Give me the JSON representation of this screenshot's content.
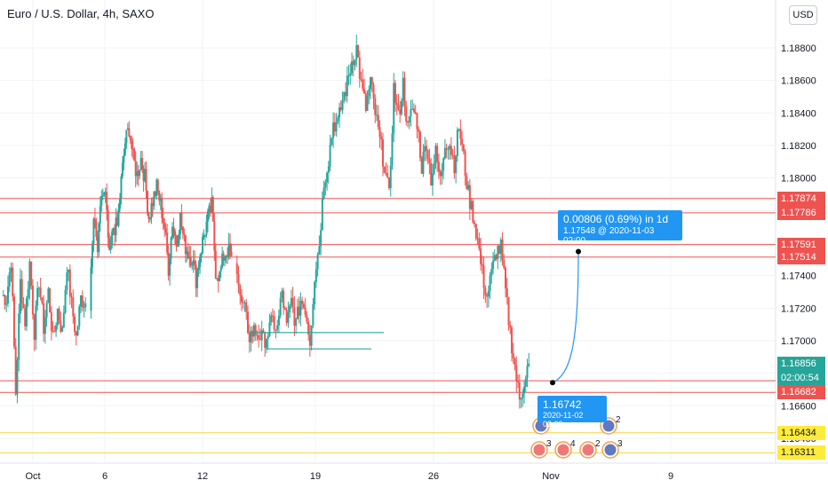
{
  "header": {
    "title": "Euro / U.S. Dollar, 4h, SAXO",
    "currency_button": "USD"
  },
  "chart_data": {
    "type": "candlestick",
    "title": "Euro / U.S. Dollar, 4h, SAXO",
    "ylim": [
      1.163,
      1.1895
    ],
    "y_ticks": [
      "1.18800",
      "1.18600",
      "1.18400",
      "1.18200",
      "1.18000",
      "1.17800",
      "1.17600",
      "1.17400",
      "1.17200",
      "1.17000",
      "1.16800",
      "1.16600",
      "1.16400"
    ],
    "x_ticks": [
      "Oct",
      "6",
      "12",
      "19",
      "26",
      "Nov",
      "9"
    ],
    "colors": {
      "up": "#26a69a",
      "down": "#ef5350",
      "horizontal_line": "#ef5350",
      "support_line": "#f5d442",
      "trend_line": "#26a69a",
      "projection": "#2196f3"
    },
    "candle_segments": [
      [
        1.1728,
        1.1726,
        1.175,
        1.1668,
        1.1736,
        1.1712,
        1.1748,
        1.1706,
        1.1737,
        1.1708,
        1.173,
        1.17,
        1.1719,
        1.1705,
        1.1747,
        1.1722,
        1.1702,
        1.1726,
        1.1723
      ],
      [
        1.1723,
        1.1775,
        1.1755,
        1.179,
        1.1788,
        1.175,
        1.177,
        1.177,
        1.1798,
        1.1822,
        1.1831,
        1.1812,
        1.1802,
        1.1812,
        1.18,
        1.1776,
        1.1786,
        1.1794,
        1.1784,
        1.177,
        1.1745,
        1.1773,
        1.176,
        1.1776,
        1.176,
        1.1754,
        1.1751,
        1.1738,
        1.1753,
        1.1765,
        1.1775,
        1.1783,
        1.1743,
        1.174,
        1.1752,
        1.1756,
        1.1752
      ],
      [
        1.1752,
        1.1725,
        1.1718,
        1.1703,
        1.1706,
        1.1704,
        1.17,
        1.1705,
        1.1712,
        1.1707,
        1.173,
        1.1708,
        1.1724,
        1.171,
        1.1725,
        1.172,
        1.17,
        1.174,
        1.176,
        1.1798,
        1.1812,
        1.1834,
        1.1833,
        1.1848,
        1.1858,
        1.1872,
        1.188,
        1.1857,
        1.1843,
        1.1859,
        1.184,
        1.1823,
        1.1808,
        1.1788,
        1.1855,
        1.1837,
        1.1858,
        1.183,
        1.1843,
        1.1835,
        1.1807,
        1.1823,
        1.18,
        1.1815,
        1.1798,
        1.1823,
        1.1821,
        1.1809,
        1.1832,
        1.1812,
        1.179,
        1.1778,
        1.1762,
        1.1741,
        1.1727,
        1.1741,
        1.1755,
        1.1757,
        1.173,
        1.1705,
        1.1684,
        1.1663,
        1.1676,
        1.1686
      ]
    ],
    "horizontal_lines": [
      {
        "price": 1.17874,
        "label": "1.17874"
      },
      {
        "price": 1.17786,
        "label": "1.17786"
      },
      {
        "price": 1.17591,
        "label": "1.17591"
      },
      {
        "price": 1.17514,
        "label": "1.17514"
      },
      {
        "price": 1.16754,
        "label": "1.16754"
      },
      {
        "price": 1.16682,
        "label": "1.16682"
      }
    ],
    "support_lines": [
      {
        "price": 1.16434,
        "label": "1.16434"
      },
      {
        "price": 1.16311,
        "label": "1.16311"
      }
    ],
    "current_price": {
      "label": "1.16856",
      "countdown": "02:00:54",
      "price": 1.16856
    },
    "trend_lines": [
      {
        "from_date": "Oct 15",
        "to_date": "Oct 22",
        "price": 1.1705
      },
      {
        "from_date": "Oct 16",
        "to_date": "Oct 22",
        "price": 1.1695
      }
    ],
    "projection": {
      "start_price": 1.16742,
      "start_time": "2020-11-02 02:00",
      "end_price": 1.17548,
      "end_time": "2020-11-03 02:00",
      "change_text": "0.00806 (0.69%) in 1d"
    }
  },
  "projection_box": {
    "line1": "0.00806 (0.69%) in 1d",
    "line2": "1.17548 @ 2020-11-03  02:00"
  },
  "start_box": {
    "line1": "1.16742",
    "line2": "2020-11-02 02:00"
  },
  "event_badges": [
    "6",
    "2",
    "3",
    "4",
    "2",
    "3"
  ]
}
